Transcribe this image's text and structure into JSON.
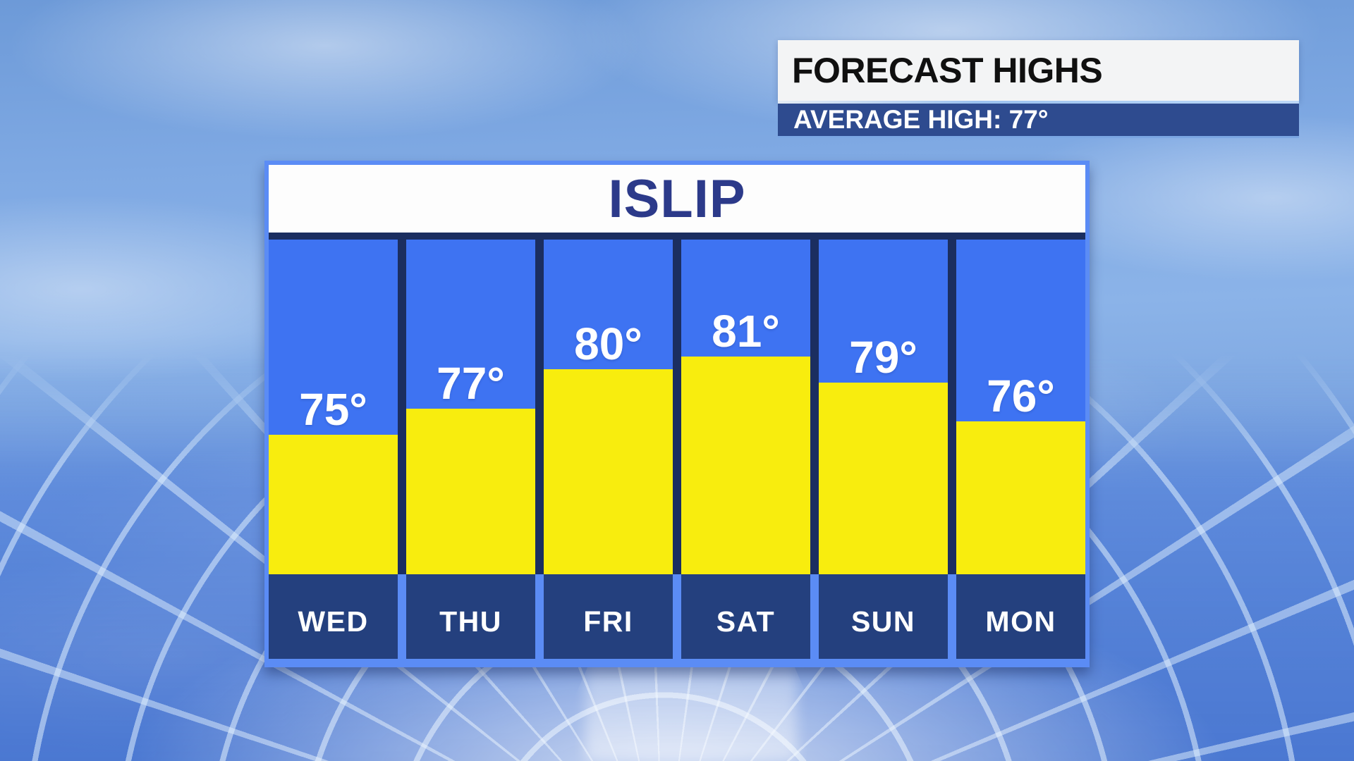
{
  "header": {
    "title": "FORECAST HIGHS",
    "subtitle": "AVERAGE HIGH: 77°"
  },
  "chart_data": {
    "type": "bar",
    "title": "ISLIP",
    "categories": [
      "WED",
      "THU",
      "FRI",
      "SAT",
      "SUN",
      "MON"
    ],
    "values": [
      75,
      77,
      80,
      81,
      79,
      76
    ],
    "unit": "°",
    "value_labels": [
      "75°",
      "77°",
      "80°",
      "81°",
      "79°",
      "76°"
    ],
    "annotation": "AVERAGE HIGH: 77°",
    "average_high": 77,
    "xlabel": "",
    "ylabel": "",
    "grid": false,
    "legend_position": "none",
    "bar_color": "#f8ed0e",
    "column_color": "#3e73f2",
    "footer_color": "#24407e",
    "label_color": "#ffffff"
  },
  "colors": {
    "frame_blue": "#5b8cf5",
    "panel_navy": "#1b2e60",
    "footer_navy": "#24407e",
    "avg_bar_blue": "#2e4b8f",
    "header_box_white": "#f3f4f5",
    "title_navy": "#2c3a8a",
    "header_text_black": "#101010",
    "sky_blue": "#7ea8e2"
  }
}
